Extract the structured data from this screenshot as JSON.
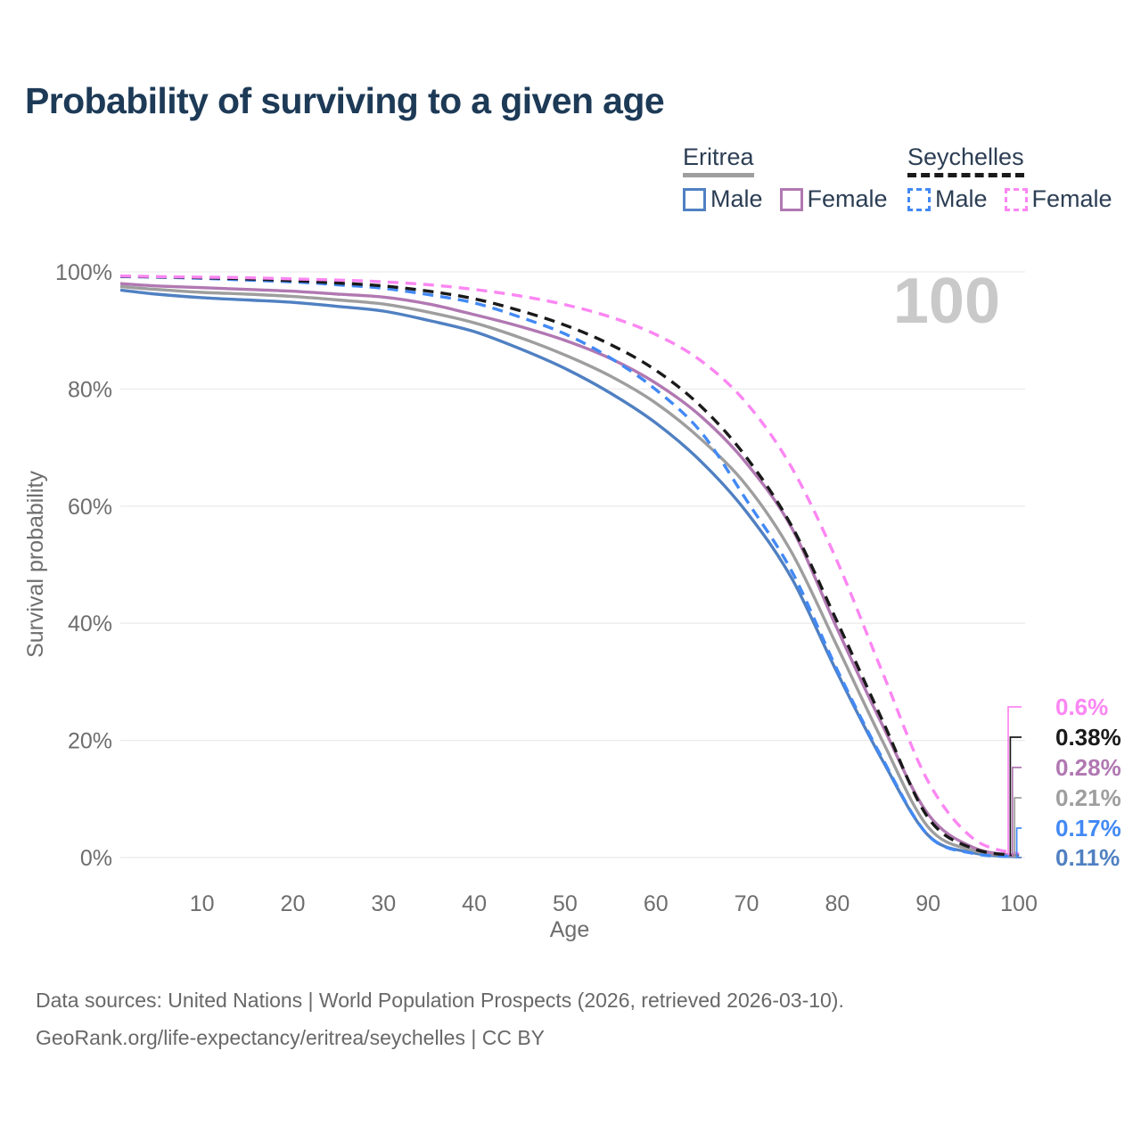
{
  "title": "Probability of surviving to a given age",
  "watermark_age": "100",
  "legend": {
    "groups": [
      {
        "name": "Eritrea",
        "line_style": "solid",
        "underline_color": "#9e9e9e",
        "items": [
          {
            "label": "Male",
            "color": "#5080c2"
          },
          {
            "label": "Female",
            "color": "#b178b2"
          }
        ]
      },
      {
        "name": "Seychelles",
        "line_style": "dashed",
        "underline_color": "#1a1a1a",
        "items": [
          {
            "label": "Male",
            "color": "#4289f5"
          },
          {
            "label": "Female",
            "color": "#fb86f2"
          }
        ]
      }
    ]
  },
  "chart_data": {
    "type": "line",
    "title": "Probability of surviving to a given age",
    "xlabel": "Age",
    "ylabel": "Survival probability",
    "xlim": [
      1,
      100
    ],
    "ylim": [
      0,
      100
    ],
    "grid": "horizontal",
    "x_ticks": [
      10,
      20,
      30,
      40,
      50,
      60,
      70,
      80,
      90,
      100
    ],
    "y_ticks": [
      {
        "label": "0%",
        "value": 0
      },
      {
        "label": "20%",
        "value": 20
      },
      {
        "label": "40%",
        "value": 40
      },
      {
        "label": "60%",
        "value": 60
      },
      {
        "label": "80%",
        "value": 80
      },
      {
        "label": "100%",
        "value": 100
      }
    ],
    "x": [
      1,
      5,
      10,
      15,
      20,
      25,
      30,
      35,
      40,
      45,
      50,
      55,
      60,
      65,
      70,
      75,
      80,
      85,
      90,
      95,
      100
    ],
    "series": [
      {
        "name": "Eritrea Male",
        "country": "Eritrea",
        "sex": "Male",
        "style": "solid",
        "color": "#5080c2",
        "values": [
          96.9,
          96.2,
          95.6,
          95.2,
          94.8,
          94.1,
          93.3,
          91.7,
          89.8,
          86.9,
          83.5,
          79.3,
          74.2,
          67.6,
          59.0,
          47.6,
          31.5,
          16.5,
          3.8,
          0.8,
          0.11
        ],
        "end_label": {
          "text": "0.11%",
          "flag": "eritrea"
        }
      },
      {
        "name": "Eritrea Both sexes",
        "country": "Eritrea",
        "sex": "Both",
        "style": "solid",
        "color": "#9e9e9e",
        "values": [
          97.5,
          97.0,
          96.5,
          96.2,
          95.8,
          95.2,
          94.5,
          93.1,
          91.3,
          88.8,
          85.8,
          82.2,
          77.6,
          71.4,
          63.5,
          52.0,
          36.0,
          19.8,
          5.2,
          1.2,
          0.21
        ],
        "end_label": {
          "text": "0.21%",
          "flag": "eritrea"
        }
      },
      {
        "name": "Eritrea Female",
        "country": "Eritrea",
        "sex": "Female",
        "style": "solid",
        "color": "#b178b2",
        "values": [
          98.0,
          97.6,
          97.3,
          97.0,
          96.7,
          96.2,
          95.7,
          94.5,
          92.7,
          90.7,
          88.3,
          85.2,
          81.0,
          75.3,
          67.3,
          56.2,
          39.0,
          22.5,
          7.4,
          1.7,
          0.28
        ],
        "end_label": {
          "text": "0.28%",
          "flag": "eritrea"
        }
      },
      {
        "name": "Seychelles Male",
        "country": "Seychelles",
        "sex": "Male",
        "style": "dashed",
        "color": "#4289f5",
        "values": [
          99.2,
          99.1,
          98.9,
          98.6,
          98.3,
          97.8,
          97.2,
          96.1,
          94.7,
          92.3,
          89.4,
          85.3,
          79.9,
          72.6,
          61.0,
          48.8,
          32.0,
          16.8,
          3.8,
          0.7,
          0.17
        ],
        "end_label": {
          "text": "0.17%",
          "flag": "seychelles"
        }
      },
      {
        "name": "Seychelles Both sexes",
        "country": "Seychelles",
        "sex": "Both",
        "style": "dashed",
        "color": "#1a1a1a",
        "values": [
          99.25,
          99.15,
          99.0,
          98.8,
          98.5,
          98.1,
          97.6,
          96.7,
          95.4,
          93.4,
          90.9,
          87.6,
          83.2,
          77.0,
          68.3,
          56.5,
          40.2,
          23.3,
          6.8,
          1.5,
          0.38
        ],
        "end_label": {
          "text": "0.38%",
          "flag": "seychelles"
        }
      },
      {
        "name": "Seychelles Female",
        "country": "Seychelles",
        "sex": "Female",
        "style": "dashed",
        "color": "#fb86f2",
        "values": [
          99.3,
          99.2,
          99.1,
          99.0,
          98.8,
          98.6,
          98.3,
          97.8,
          97.0,
          95.9,
          94.4,
          92.3,
          89.3,
          84.8,
          77.6,
          66.5,
          50.5,
          31.5,
          13.0,
          3.2,
          0.6
        ],
        "end_label": {
          "text": "0.6%",
          "flag": "seychelles"
        }
      }
    ]
  },
  "footer": {
    "line1": "Data sources: United Nations | World Population Prospects (2026, retrieved 2026-03-10).",
    "line2": "GeoRank.org/life-expectancy/eritrea/seychelles | CC BY"
  }
}
